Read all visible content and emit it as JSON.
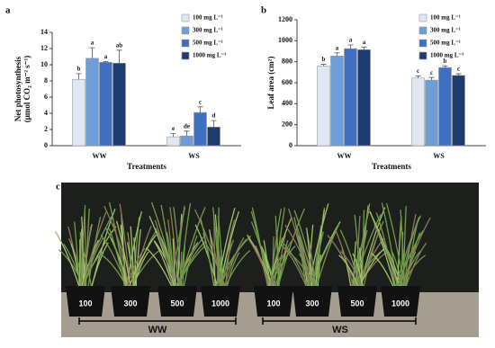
{
  "chart_data": [
    {
      "type": "bar",
      "panel": "a",
      "ylabel": [
        "Net photosynthesis",
        "(μmol CO₂ m⁻² s⁻¹)"
      ],
      "xlabel": "Treatments",
      "categories": [
        "WW",
        "WS"
      ],
      "ylim": [
        0,
        14
      ],
      "yticks": [
        0,
        2,
        4,
        6,
        8,
        10,
        12,
        14
      ],
      "series": [
        {
          "name": "100 mg L⁻¹",
          "color": "#dfe7f3",
          "values": [
            8.2,
            1.1
          ],
          "errors": [
            0.7,
            0.4
          ],
          "letters": [
            "b",
            "e"
          ]
        },
        {
          "name": "300 mg L⁻¹",
          "color": "#6f9dd8",
          "values": [
            10.8,
            1.2
          ],
          "errors": [
            1.3,
            0.6
          ],
          "letters": [
            "a",
            "de"
          ]
        },
        {
          "name": "500 mg L⁻¹",
          "color": "#3f6fc0",
          "values": [
            10.3,
            4.1
          ],
          "errors": [
            0.1,
            0.7
          ],
          "letters": [
            "a",
            "c"
          ]
        },
        {
          "name": "1000 mg L⁻¹",
          "color": "#1f3a6e",
          "values": [
            10.2,
            2.3
          ],
          "errors": [
            1.6,
            0.8
          ],
          "letters": [
            "ab",
            "d"
          ]
        }
      ]
    },
    {
      "type": "bar",
      "panel": "b",
      "ylabel": [
        "Leaf area (cm²)"
      ],
      "xlabel": "Treatments",
      "categories": [
        "WW",
        "WS"
      ],
      "ylim": [
        0,
        1200
      ],
      "yticks": [
        0,
        200,
        400,
        600,
        800,
        1000,
        1200
      ],
      "series": [
        {
          "name": "100 mg L⁻¹",
          "color": "#dfe7f3",
          "values": [
            760,
            645
          ],
          "errors": [
            15,
            20
          ],
          "letters": [
            "b",
            "c"
          ]
        },
        {
          "name": "300 mg L⁻¹",
          "color": "#6f9dd8",
          "values": [
            855,
            625
          ],
          "errors": [
            30,
            25
          ],
          "letters": [
            "a",
            "c"
          ]
        },
        {
          "name": "500 mg L⁻¹",
          "color": "#3f6fc0",
          "values": [
            925,
            745
          ],
          "errors": [
            35,
            15
          ],
          "letters": [
            "a",
            "b"
          ]
        },
        {
          "name": "1000 mg L⁻¹",
          "color": "#1f3a6e",
          "values": [
            915,
            670
          ],
          "errors": [
            25,
            15
          ],
          "letters": [
            "a",
            "c"
          ]
        }
      ]
    }
  ],
  "photo": {
    "panel": "c",
    "pot_labels": [
      "100",
      "300",
      "500",
      "1000",
      "100",
      "300",
      "500",
      "1000"
    ],
    "groups": [
      "WW",
      "WS"
    ]
  }
}
